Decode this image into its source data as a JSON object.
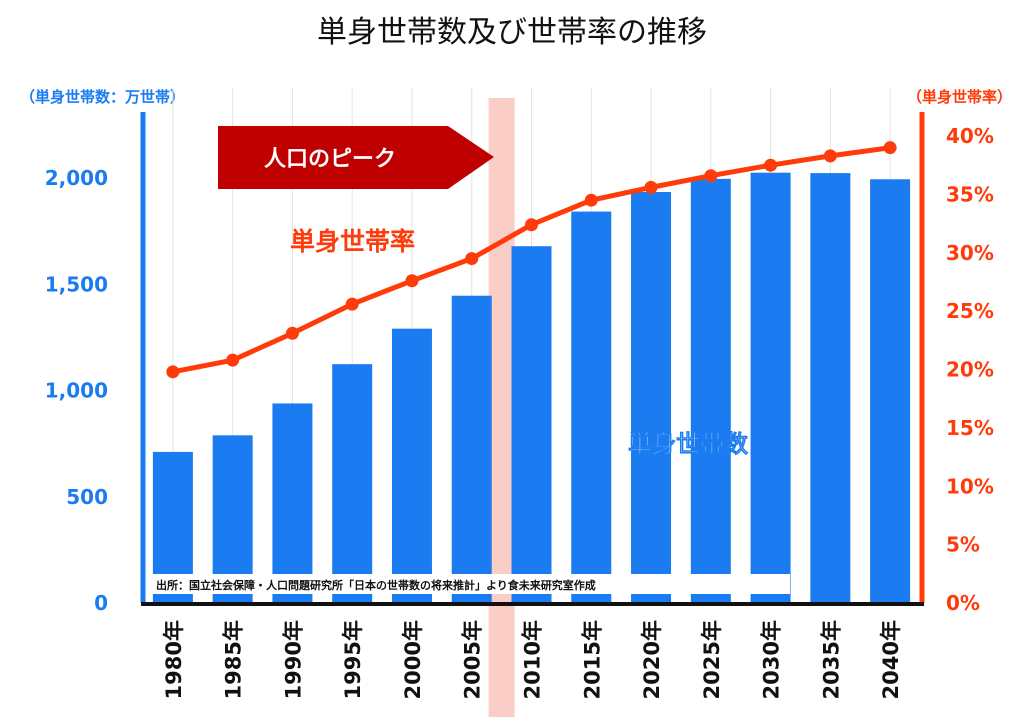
{
  "chart_data": {
    "type": "bar",
    "title": "単身世帯数及び世帯率の推移",
    "categories": [
      "1980年",
      "1985年",
      "1990年",
      "1995年",
      "2000年",
      "2005年",
      "2010年",
      "2015年",
      "2020年",
      "2025年",
      "2030年",
      "2035年",
      "2040年"
    ],
    "series": [
      {
        "name": "単身世帯数",
        "type": "bar",
        "axis": "left",
        "color": "#1a7cf0",
        "values": [
          711,
          789,
          939,
          1124,
          1291,
          1446,
          1679,
          1842,
          1934,
          1996,
          2025,
          2023,
          1994
        ]
      },
      {
        "name": "単身世帯率",
        "type": "line",
        "axis": "right",
        "color": "#ff3b0a",
        "values": [
          19.8,
          20.8,
          23.1,
          25.6,
          27.6,
          29.5,
          32.4,
          34.5,
          35.6,
          36.6,
          37.5,
          38.3,
          39.0
        ]
      }
    ],
    "y_left": {
      "label": "（単身世帯数：万世帯）",
      "ticks": [
        "0",
        "500",
        "1,000",
        "1,500",
        "2,000"
      ],
      "ylim": [
        0,
        2200
      ]
    },
    "y_right": {
      "label": "（単身世帯率）",
      "ticks": [
        "0%",
        "5%",
        "10%",
        "15%",
        "20%",
        "25%",
        "30%",
        "35%",
        "40%"
      ],
      "ylim": [
        0,
        40
      ]
    },
    "highlight": {
      "category": "2005年-2010年",
      "color": "#f9c9c0"
    },
    "annotations": {
      "peak_label": "人口のピーク",
      "peak_color": "#c00000",
      "source": "出所：国立社会保障・人口問題研究所「日本の世帯数の将来推計」より食未来研究室作成"
    },
    "grid": "vertical"
  }
}
